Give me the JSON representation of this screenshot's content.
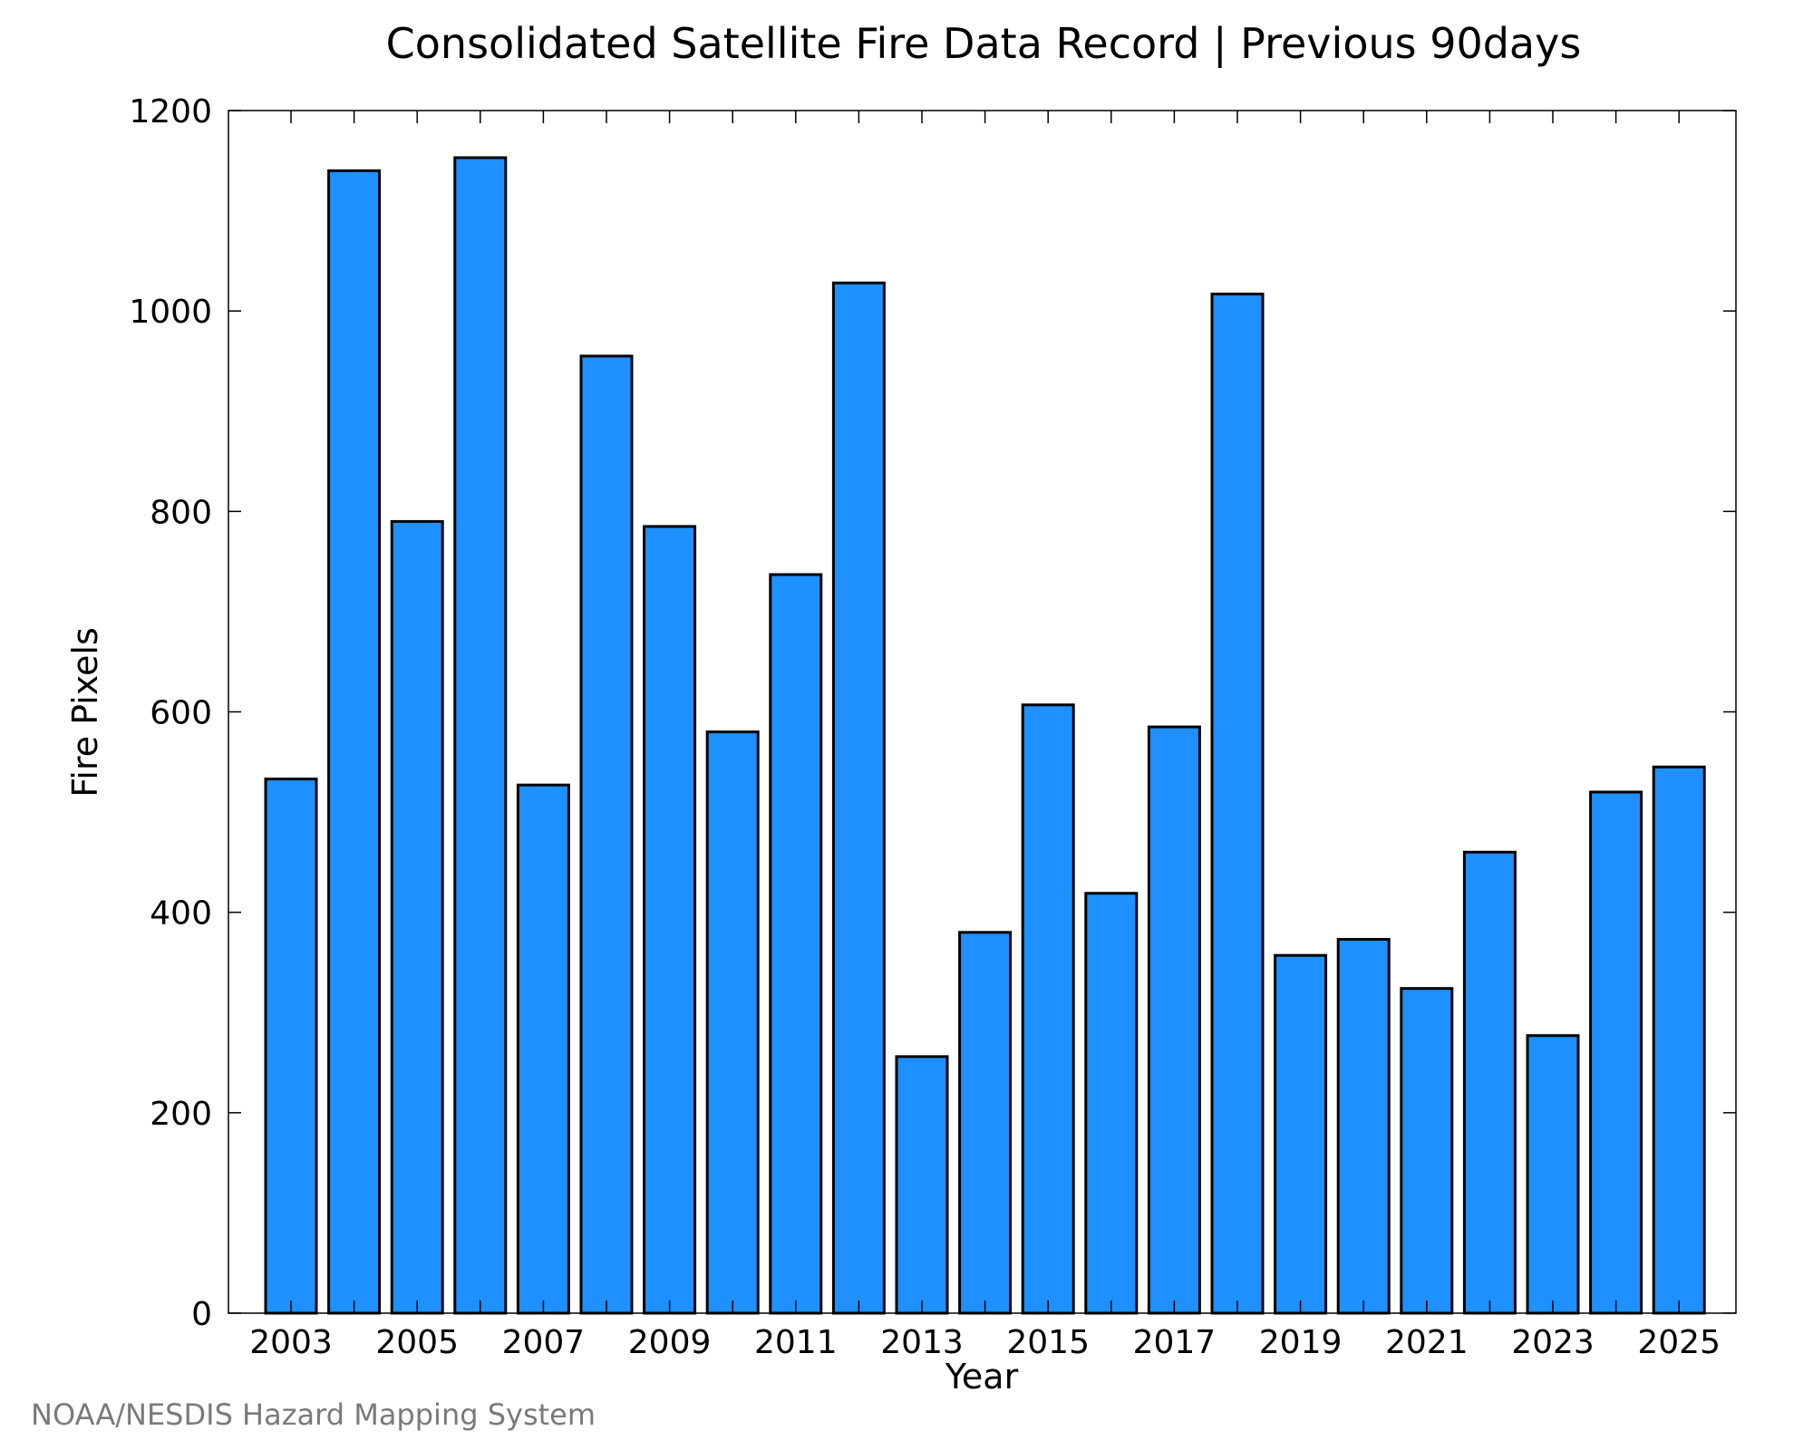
{
  "chart_data": {
    "type": "bar",
    "title": "Consolidated Satellite Fire Data Record | Previous 90days",
    "xlabel": "Year",
    "ylabel": "Fire Pixels",
    "categories": [
      "2003",
      "2004",
      "2005",
      "2006",
      "2007",
      "2008",
      "2009",
      "2010",
      "2011",
      "2012",
      "2013",
      "2014",
      "2015",
      "2016",
      "2017",
      "2018",
      "2019",
      "2020",
      "2021",
      "2022",
      "2023",
      "2024",
      "2025"
    ],
    "x_tick_labels": [
      "2003",
      "2005",
      "2007",
      "2009",
      "2011",
      "2013",
      "2015",
      "2017",
      "2019",
      "2021",
      "2023",
      "2025"
    ],
    "values": [
      533,
      1140,
      790,
      1153,
      527,
      955,
      785,
      580,
      737,
      1028,
      256,
      380,
      607,
      419,
      585,
      1017,
      357,
      373,
      324,
      460,
      277,
      520,
      545
    ],
    "ylim": [
      0,
      1200
    ],
    "y_ticks": [
      0,
      200,
      400,
      600,
      800,
      1000,
      1200
    ],
    "grid": false,
    "legend": "none",
    "bar_color": "#1e90ff",
    "edge_color": "#000000"
  },
  "credit": "NOAA/NESDIS Hazard Mapping System"
}
